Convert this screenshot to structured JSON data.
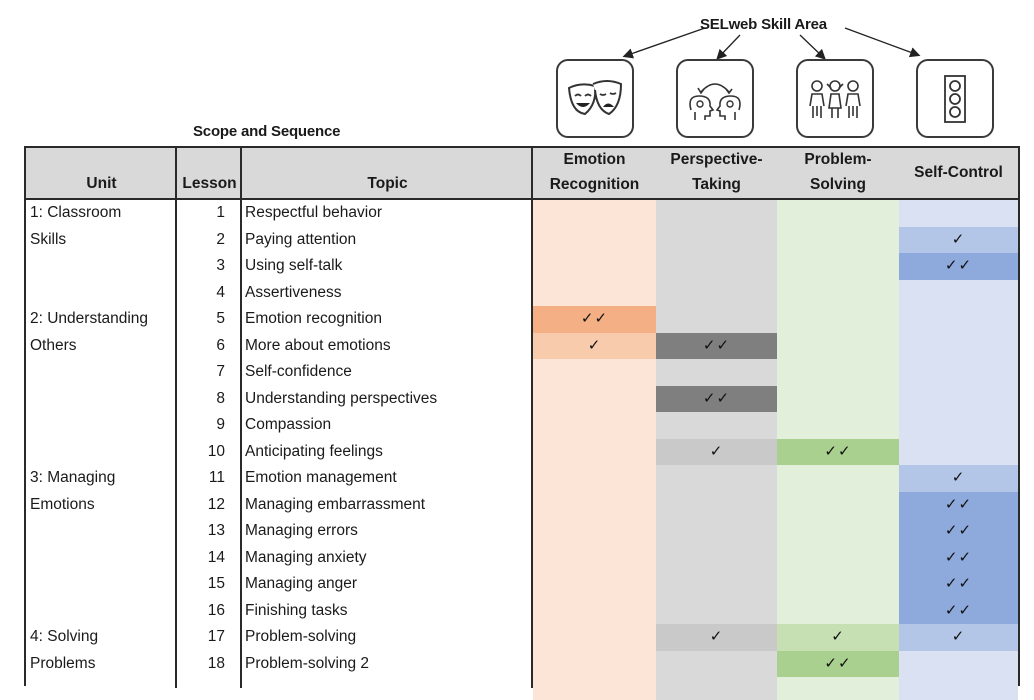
{
  "skill_area_title": "SELweb Skill Area",
  "scope_title": "Scope and Sequence",
  "icons": [
    {
      "name": "theater-masks-icon",
      "skill": "Emotion Recognition"
    },
    {
      "name": "perspective-heads-icon",
      "skill": "Perspective-Taking"
    },
    {
      "name": "group-of-children-icon",
      "skill": "Problem-Solving"
    },
    {
      "name": "traffic-light-icon",
      "skill": "Self-Control"
    }
  ],
  "headers": {
    "unit": "Unit",
    "lesson": "Lesson",
    "topic": "Topic",
    "er_line1": "Emotion",
    "er_line2": "Recognition",
    "pt_line1": "Perspective-",
    "pt_line2": "Taking",
    "ps_line1": "Problem-",
    "ps_line2": "Solving",
    "sc_line1": "",
    "sc_line2": "Self-Control"
  },
  "colors": {
    "header_bg": "#d9d9d9",
    "er_base": "#fce4d6",
    "er_one": "#f8cbad",
    "er_two": "#f4b084",
    "pt_base": "#d9d9d9",
    "pt_one": "#c9c9c9",
    "pt_two": "#7f7f7f",
    "ps_base": "#e2efda",
    "ps_one": "#c6e0b4",
    "ps_two": "#a9d08e",
    "sc_base": "#d9e1f2",
    "sc_one": "#b4c6e7",
    "sc_two": "#8ea9db"
  },
  "check_one": "✓",
  "check_two": "✓✓",
  "rows": [
    {
      "unit": "1: Classroom",
      "lesson": "1",
      "topic": "Respectful behavior",
      "er": 0,
      "pt": 0,
      "ps": 0,
      "sc": 0
    },
    {
      "unit": "Skills",
      "lesson": "2",
      "topic": "Paying attention",
      "er": 0,
      "pt": 0,
      "ps": 0,
      "sc": 1
    },
    {
      "unit": "",
      "lesson": "3",
      "topic": "Using self-talk",
      "er": 0,
      "pt": 0,
      "ps": 0,
      "sc": 2
    },
    {
      "unit": "",
      "lesson": "4",
      "topic": "Assertiveness",
      "er": 0,
      "pt": 0,
      "ps": 0,
      "sc": 0
    },
    {
      "unit": "2: Understanding",
      "lesson": "5",
      "topic": "Emotion recognition",
      "er": 2,
      "pt": 0,
      "ps": 0,
      "sc": 0
    },
    {
      "unit": "Others",
      "lesson": "6",
      "topic": "More about emotions",
      "er": 1,
      "pt": 2,
      "ps": 0,
      "sc": 0
    },
    {
      "unit": "",
      "lesson": "7",
      "topic": "Self-confidence",
      "er": 0,
      "pt": 0,
      "ps": 0,
      "sc": 0
    },
    {
      "unit": "",
      "lesson": "8",
      "topic": "Understanding perspectives",
      "er": 0,
      "pt": 2,
      "ps": 0,
      "sc": 0
    },
    {
      "unit": "",
      "lesson": "9",
      "topic": "Compassion",
      "er": 0,
      "pt": 0,
      "ps": 0,
      "sc": 0
    },
    {
      "unit": "",
      "lesson": "10",
      "topic": "Anticipating feelings",
      "er": 0,
      "pt": 1,
      "ps": 2,
      "sc": 0
    },
    {
      "unit": "3: Managing",
      "lesson": "11",
      "topic": "Emotion management",
      "er": 0,
      "pt": 0,
      "ps": 0,
      "sc": 1
    },
    {
      "unit": "Emotions",
      "lesson": "12",
      "topic": "Managing embarrassment",
      "er": 0,
      "pt": 0,
      "ps": 0,
      "sc": 2
    },
    {
      "unit": "",
      "lesson": "13",
      "topic": "Managing errors",
      "er": 0,
      "pt": 0,
      "ps": 0,
      "sc": 2
    },
    {
      "unit": "",
      "lesson": "14",
      "topic": "Managing anxiety",
      "er": 0,
      "pt": 0,
      "ps": 0,
      "sc": 2
    },
    {
      "unit": "",
      "lesson": "15",
      "topic": "Managing anger",
      "er": 0,
      "pt": 0,
      "ps": 0,
      "sc": 2
    },
    {
      "unit": "",
      "lesson": "16",
      "topic": "Finishing tasks",
      "er": 0,
      "pt": 0,
      "ps": 0,
      "sc": 2
    },
    {
      "unit": "4: Solving",
      "lesson": "17",
      "topic": "Problem-solving",
      "er": 0,
      "pt": 1,
      "ps": 1,
      "sc": 1
    },
    {
      "unit": "Problems",
      "lesson": "18",
      "topic": "Problem-solving 2",
      "er": 0,
      "pt": 0,
      "ps": 2,
      "sc": 0
    }
  ]
}
